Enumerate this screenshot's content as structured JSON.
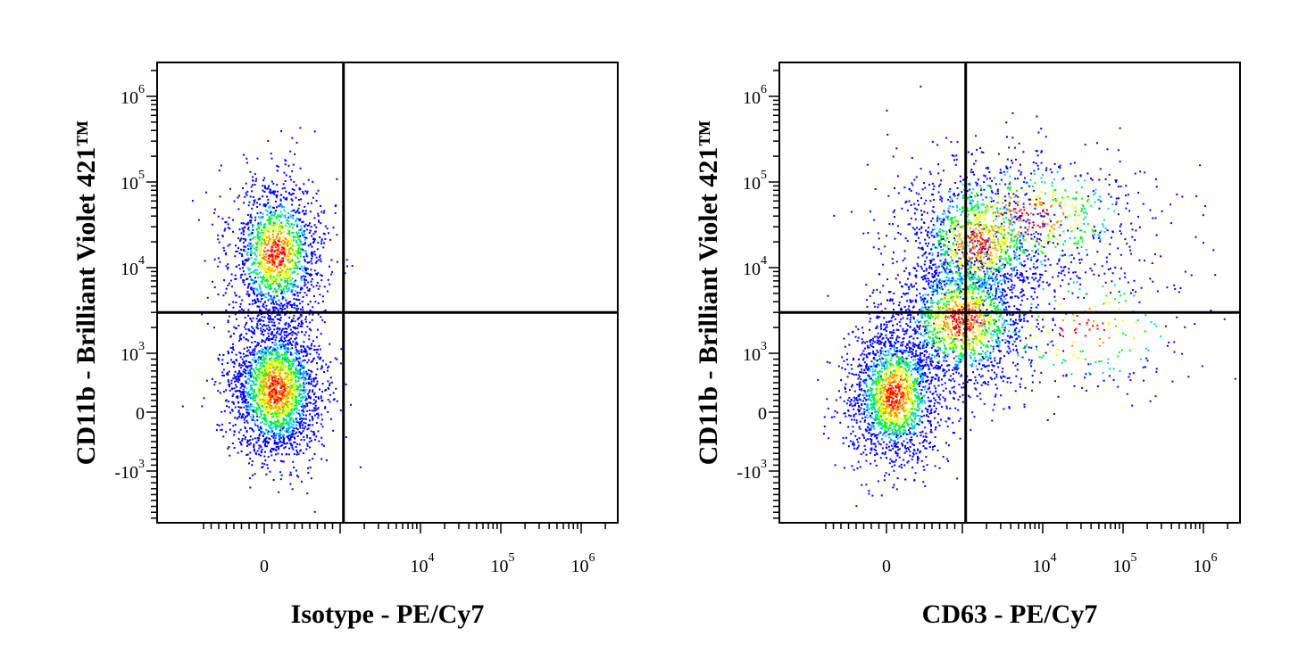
{
  "chart_data": [
    {
      "type": "scatter",
      "title": "",
      "xlabel": "Isotype - PE/Cy7",
      "ylabel": "CD11b - Brilliant Violet 421™",
      "x_scale": "biexponential",
      "y_scale": "biexponential",
      "x_ticks": [
        {
          "base": "0",
          "exp": ""
        },
        {
          "base": "10",
          "exp": "4"
        },
        {
          "base": "10",
          "exp": "5"
        },
        {
          "base": "10",
          "exp": "6"
        }
      ],
      "y_ticks": [
        {
          "base": "10",
          "exp": "6"
        },
        {
          "base": "10",
          "exp": "5"
        },
        {
          "base": "10",
          "exp": "4"
        },
        {
          "base": "10",
          "exp": "3"
        },
        {
          "base": "0",
          "exp": ""
        },
        {
          "base": "-10",
          "exp": "3"
        }
      ],
      "quadrant_gate": {
        "x": 1100,
        "y": 3000
      },
      "populations": [
        {
          "name": "",
          "x_center": 150,
          "y_center": 400,
          "count": 2400
        },
        {
          "name": "",
          "x_center": 150,
          "y_center": 15000,
          "count": 1600
        }
      ],
      "density_colors": [
        "#0000ff",
        "#00c8ff",
        "#00ff00",
        "#ffff00",
        "#ff8c00",
        "#ff0000"
      ]
    },
    {
      "type": "scatter",
      "title": "",
      "xlabel": "CD63 - PE/Cy7",
      "ylabel": "CD11b - Brilliant Violet 421™",
      "x_scale": "biexponential",
      "y_scale": "biexponential",
      "x_ticks": [
        {
          "base": "0",
          "exp": ""
        },
        {
          "base": "10",
          "exp": "4"
        },
        {
          "base": "10",
          "exp": "5"
        },
        {
          "base": "10",
          "exp": "6"
        }
      ],
      "y_ticks": [
        {
          "base": "10",
          "exp": "6"
        },
        {
          "base": "10",
          "exp": "5"
        },
        {
          "base": "10",
          "exp": "4"
        },
        {
          "base": "10",
          "exp": "3"
        },
        {
          "base": "0",
          "exp": ""
        },
        {
          "base": "-10",
          "exp": "3"
        }
      ],
      "quadrant_gate": {
        "x": 1100,
        "y": 3000
      },
      "populations": [
        {
          "name": "",
          "x_center": 100,
          "y_center": 300,
          "count": 1900
        },
        {
          "name": "",
          "x_center": 1000,
          "y_center": 2500,
          "count": 1700
        },
        {
          "name": "",
          "x_center": 1500,
          "y_center": 20000,
          "count": 1100
        },
        {
          "name": "",
          "x_center": 6000,
          "y_center": 40000,
          "count": 700
        },
        {
          "name": "",
          "x_center": 30000,
          "y_center": 2000,
          "count": 250
        }
      ],
      "density_colors": [
        "#0000ff",
        "#00c8ff",
        "#00ff00",
        "#ffff00",
        "#ff8c00",
        "#ff0000"
      ]
    }
  ]
}
